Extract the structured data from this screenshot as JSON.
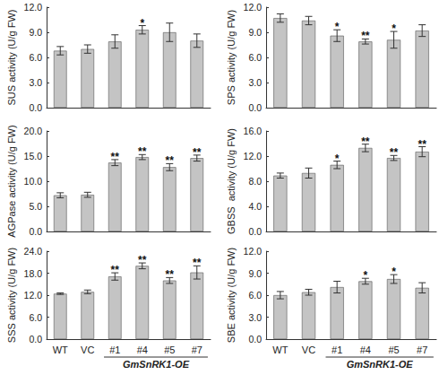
{
  "chart_data": [
    {
      "type": "bar",
      "y_label": "SUS activity (U/g FW)",
      "categories": [
        "WT",
        "VC",
        "#1",
        "#4",
        "#5",
        "#7"
      ],
      "values": [
        6.8,
        7.0,
        7.9,
        9.3,
        9.0,
        8.0
      ],
      "errors": [
        0.5,
        0.5,
        0.8,
        0.5,
        1.1,
        0.8
      ],
      "significance": [
        null,
        null,
        null,
        "*",
        null,
        null
      ],
      "ylim": [
        0,
        12
      ],
      "yticks": [
        {
          "value": 0,
          "label": "0.0"
        },
        {
          "value": 3,
          "label": "3.0"
        },
        {
          "value": 6,
          "label": "6.0"
        },
        {
          "value": 9,
          "label": "9.0"
        },
        {
          "value": 12,
          "label": "12.0"
        }
      ],
      "color": "#c4c4c4",
      "grid": false,
      "tick_labels": "y"
    },
    {
      "type": "bar",
      "y_label": "SPS activity (U/g FW)",
      "categories": [
        "WT",
        "VC",
        "#1",
        "#4",
        "#5",
        "#7"
      ],
      "values": [
        10.7,
        10.4,
        8.6,
        7.9,
        8.1,
        9.2
      ],
      "errors": [
        0.5,
        0.5,
        0.7,
        0.3,
        1.0,
        0.7
      ],
      "significance": [
        null,
        null,
        "*",
        "**",
        "*",
        null
      ],
      "ylim": [
        0,
        12
      ],
      "yticks": [
        {
          "value": 0,
          "label": "0.0"
        },
        {
          "value": 3,
          "label": "3.0"
        },
        {
          "value": 6,
          "label": "6.0"
        },
        {
          "value": 9,
          "label": "9.0"
        },
        {
          "value": 12,
          "label": "12.0"
        }
      ],
      "color": "#c4c4c4",
      "grid": false,
      "tick_labels": "y"
    },
    {
      "type": "bar",
      "y_label": "AGPase activity (U/g FW)",
      "categories": [
        "WT",
        "VC",
        "#1",
        "#4",
        "#5",
        "#7"
      ],
      "values": [
        7.2,
        7.3,
        13.7,
        14.8,
        12.8,
        14.6
      ],
      "errors": [
        0.5,
        0.5,
        0.6,
        0.5,
        0.7,
        0.6
      ],
      "significance": [
        null,
        null,
        "**",
        "**",
        "**",
        "**"
      ],
      "ylim": [
        0,
        20
      ],
      "yticks": [
        {
          "value": 0,
          "label": "0.0"
        },
        {
          "value": 5,
          "label": "5.0"
        },
        {
          "value": 10,
          "label": "10.0"
        },
        {
          "value": 15,
          "label": "15.0"
        },
        {
          "value": 20,
          "label": "20.0"
        }
      ],
      "color": "#c4c4c4",
      "grid": false,
      "tick_labels": "y"
    },
    {
      "type": "bar",
      "y_label": "GBSS  activity (U/g FW)",
      "categories": [
        "WT",
        "VC",
        "#1",
        "#4",
        "#5",
        "#7"
      ],
      "values": [
        8.9,
        9.3,
        10.6,
        13.3,
        11.7,
        12.7
      ],
      "errors": [
        0.4,
        0.8,
        0.6,
        0.6,
        0.4,
        0.8
      ],
      "significance": [
        null,
        null,
        "*",
        "**",
        "**",
        "**"
      ],
      "ylim": [
        0,
        16
      ],
      "yticks": [
        {
          "value": 0,
          "label": "0.0"
        },
        {
          "value": 4,
          "label": "4.0"
        },
        {
          "value": 8,
          "label": "8.0"
        },
        {
          "value": 12,
          "label": "12.0"
        },
        {
          "value": 16,
          "label": "16.0"
        }
      ],
      "color": "#c4c4c4",
      "grid": false,
      "tick_labels": "y"
    },
    {
      "type": "bar",
      "y_label": "SSS activity (U/g FW)",
      "categories": [
        "WT",
        "VC",
        "#1",
        "#4",
        "#5",
        "#7"
      ],
      "values": [
        12.4,
        12.9,
        17.1,
        20.0,
        16.0,
        18.2
      ],
      "errors": [
        0.2,
        0.5,
        1.0,
        0.8,
        0.8,
        1.8
      ],
      "significance": [
        null,
        null,
        "**",
        "**",
        "**",
        "**"
      ],
      "ylim": [
        0,
        24
      ],
      "yticks": [
        {
          "value": 0,
          "label": "0.0"
        },
        {
          "value": 6,
          "label": "6.0"
        },
        {
          "value": 12,
          "label": "12.0"
        },
        {
          "value": 18,
          "label": "18.0"
        },
        {
          "value": 24,
          "label": "24.0"
        }
      ],
      "color": "#c4c4c4",
      "grid": false,
      "group_label": "GmSnRK1-OE",
      "group_categories": [
        "#1",
        "#7"
      ]
    },
    {
      "type": "bar",
      "y_label": "SBE activity (U/g FW)",
      "categories": [
        "WT",
        "VC",
        "#1",
        "#4",
        "#5",
        "#7"
      ],
      "values": [
        6.0,
        6.4,
        7.1,
        7.9,
        8.2,
        7.0
      ],
      "errors": [
        0.5,
        0.4,
        0.8,
        0.4,
        0.6,
        0.7
      ],
      "significance": [
        null,
        null,
        null,
        "*",
        "*",
        null
      ],
      "ylim": [
        0,
        12
      ],
      "yticks": [
        {
          "value": 0,
          "label": "0.0"
        },
        {
          "value": 3,
          "label": "3.0"
        },
        {
          "value": 6,
          "label": "6.0"
        },
        {
          "value": 9,
          "label": "9.0"
        },
        {
          "value": 12,
          "label": "12.0"
        }
      ],
      "color": "#c4c4c4",
      "grid": false,
      "group_label": "GmSnRK1-OE",
      "group_categories": [
        "#1",
        "#7"
      ]
    }
  ]
}
